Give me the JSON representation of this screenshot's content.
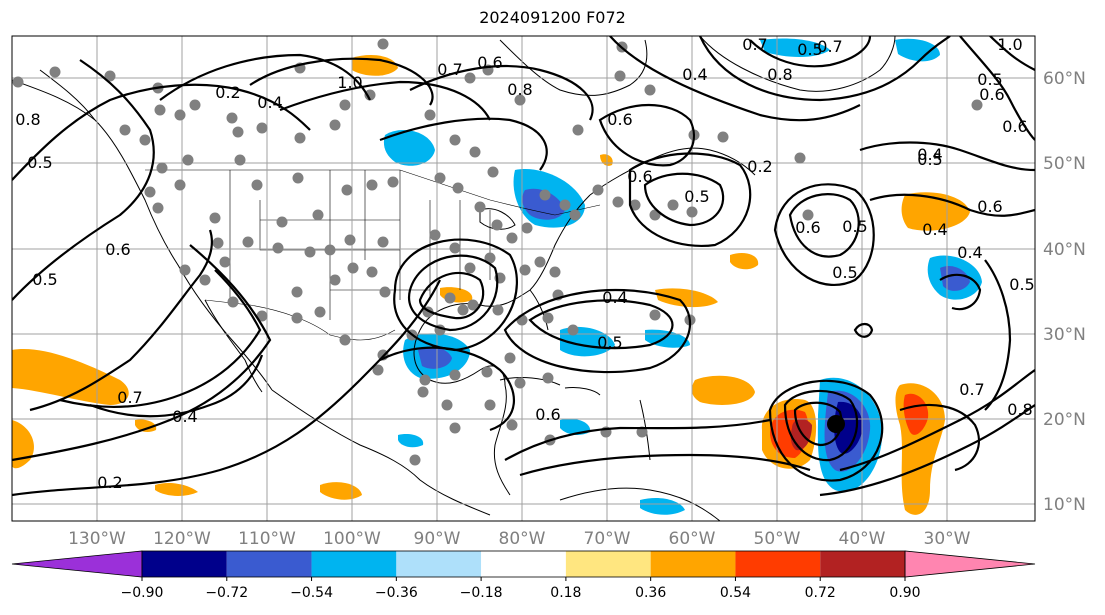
{
  "title": "2024091200 F072",
  "map": {
    "lon_labels": [
      "130°W",
      "120°W",
      "110°W",
      "100°W",
      "90°W",
      "80°W",
      "70°W",
      "60°W",
      "50°W",
      "40°W",
      "30°W"
    ],
    "lat_labels": [
      "60°N",
      "50°N",
      "40°N",
      "30°N",
      "20°N",
      "10°N"
    ],
    "contour_labels": [
      "0.2",
      "0.4",
      "0.5",
      "0.6",
      "0.7",
      "0.8",
      "1.0",
      "0.2",
      "0.4",
      "0.5",
      "0.6",
      "0.7",
      "0.8",
      "0.4",
      "0.5",
      "0.6",
      "0.5",
      "0.6",
      "0.5",
      "0.4",
      "0.6",
      "0.5",
      "0.4",
      "0.5",
      "0.6",
      "0.2",
      "0.4",
      "0.6",
      "0.7",
      "0.5",
      "0.4",
      "0.5",
      "0.7",
      "0.8",
      "0.6",
      "1.0",
      "0.8",
      "0.6",
      "0.5",
      "0.7"
    ],
    "storm_marker": "tropical-cyclone-center"
  },
  "colorbar": {
    "tick_labels": [
      "−0.90",
      "−0.72",
      "−0.54",
      "−0.36",
      "−0.18",
      "0.18",
      "0.36",
      "0.54",
      "0.72",
      "0.90"
    ],
    "colors": [
      "#9b30d9",
      "#00008b",
      "#3a5bd0",
      "#00b4f0",
      "#aee0fa",
      "#ffffff",
      "#ffe680",
      "#ffa500",
      "#ff3c00",
      "#b22222",
      "#ff85b0"
    ]
  },
  "colors": {
    "station_dot": "#808080",
    "contour": "#000000",
    "coast": "#000000",
    "grid": "#a0a0a0"
  }
}
